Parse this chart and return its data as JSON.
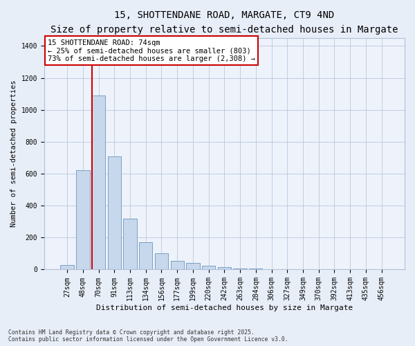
{
  "title": "15, SHOTTENDANE ROAD, MARGATE, CT9 4ND",
  "subtitle": "Size of property relative to semi-detached houses in Margate",
  "xlabel": "Distribution of semi-detached houses by size in Margate",
  "ylabel": "Number of semi-detached properties",
  "categories": [
    "27sqm",
    "48sqm",
    "70sqm",
    "91sqm",
    "113sqm",
    "134sqm",
    "156sqm",
    "177sqm",
    "199sqm",
    "220sqm",
    "242sqm",
    "263sqm",
    "284sqm",
    "306sqm",
    "327sqm",
    "349sqm",
    "370sqm",
    "392sqm",
    "413sqm",
    "435sqm",
    "456sqm"
  ],
  "values": [
    30,
    620,
    1090,
    710,
    320,
    170,
    100,
    55,
    40,
    25,
    13,
    8,
    6,
    0,
    0,
    0,
    0,
    0,
    0,
    0,
    0
  ],
  "bar_color": "#c8d8ec",
  "bar_edge_color": "#7a9fc4",
  "red_line_index": 1.575,
  "annotation_text": "15 SHOTTENDANE ROAD: 74sqm\n← 25% of semi-detached houses are smaller (803)\n73% of semi-detached houses are larger (2,308) →",
  "annotation_box_color": "#ffffff",
  "annotation_border_color": "#cc0000",
  "ylim": [
    0,
    1450
  ],
  "yticks": [
    0,
    200,
    400,
    600,
    800,
    1000,
    1200,
    1400
  ],
  "title_fontsize": 10,
  "xlabel_fontsize": 8,
  "ylabel_fontsize": 7.5,
  "tick_fontsize": 7,
  "annot_fontsize": 7.5,
  "footer_line1": "Contains HM Land Registry data © Crown copyright and database right 2025.",
  "footer_line2": "Contains public sector information licensed under the Open Government Licence v3.0.",
  "bg_color": "#e8eef8",
  "plot_bg_color": "#eef2fb"
}
